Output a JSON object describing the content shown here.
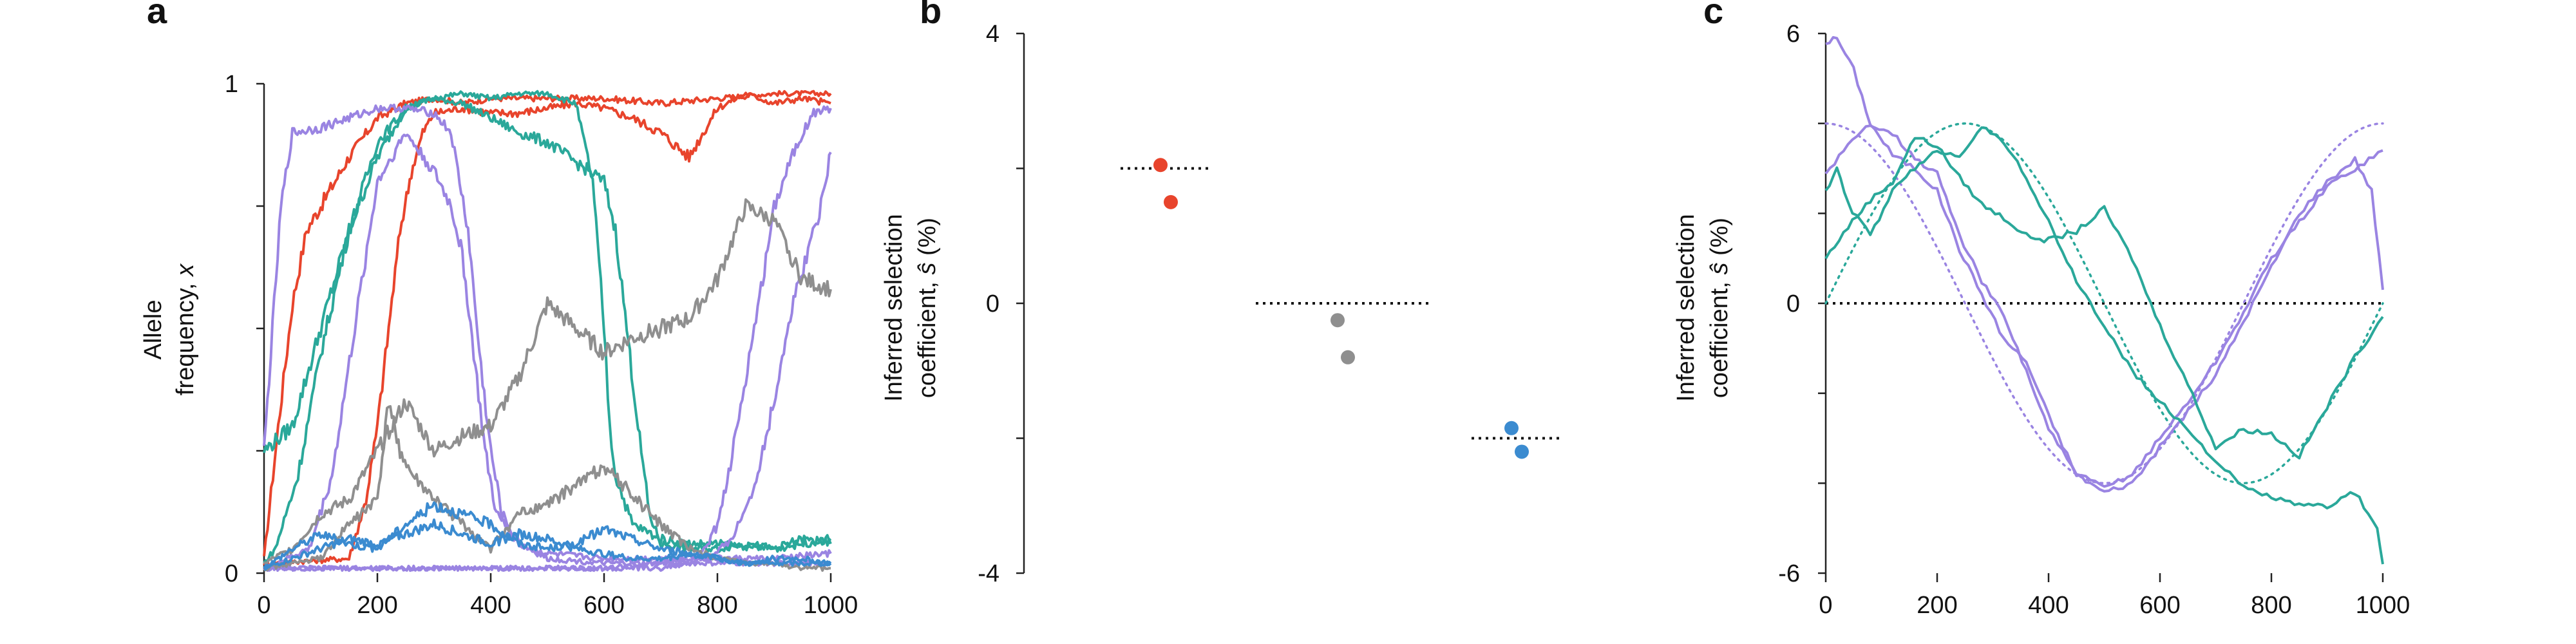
{
  "colors": {
    "red": "#e8442c",
    "teal": "#2aa89a",
    "purple": "#9a84e2",
    "gray": "#8f8f8f",
    "blue": "#3b8bd0",
    "black": "#111111"
  },
  "chart_data": [
    {
      "panel": "a",
      "type": "line",
      "xlabel": "",
      "ylabel_line1": "Allele",
      "ylabel_line2_prefix": "frequency, ",
      "ylabel_line2_var": "x",
      "xlim": [
        0,
        1000
      ],
      "ylim": [
        0,
        1
      ],
      "x_ticks": [
        0,
        200,
        400,
        600,
        800,
        1000
      ],
      "y_ticks": [
        0,
        1
      ],
      "series": [
        {
          "color": "red",
          "x": [
            0,
            25,
            50,
            75,
            100,
            150,
            200,
            250,
            300,
            350,
            400,
            500,
            600,
            700,
            800,
            900,
            1000
          ],
          "y": [
            0.03,
            0.3,
            0.55,
            0.7,
            0.75,
            0.85,
            0.93,
            0.96,
            0.97,
            0.96,
            0.97,
            0.97,
            0.97,
            0.96,
            0.97,
            0.98,
            0.98
          ]
        },
        {
          "color": "red",
          "x": [
            0,
            150,
            180,
            200,
            220,
            240,
            260,
            280,
            300,
            350,
            400,
            450,
            500,
            550,
            600,
            650,
            700,
            750,
            800,
            850,
            900,
            950,
            1000
          ],
          "y": [
            0.02,
            0.03,
            0.15,
            0.3,
            0.5,
            0.7,
            0.82,
            0.9,
            0.94,
            0.95,
            0.94,
            0.94,
            0.95,
            0.96,
            0.95,
            0.93,
            0.9,
            0.85,
            0.95,
            0.98,
            0.96,
            0.97,
            0.96
          ]
        },
        {
          "color": "teal",
          "x": [
            0,
            50,
            100,
            150,
            200,
            250,
            300,
            350,
            400,
            450,
            500,
            600,
            620,
            640,
            660,
            680,
            700,
            750,
            800,
            850,
            900,
            950,
            1000
          ],
          "y": [
            0.25,
            0.3,
            0.5,
            0.7,
            0.85,
            0.95,
            0.97,
            0.96,
            0.93,
            0.9,
            0.88,
            0.8,
            0.7,
            0.5,
            0.3,
            0.12,
            0.06,
            0.05,
            0.05,
            0.06,
            0.05,
            0.07,
            0.06
          ]
        },
        {
          "color": "teal",
          "x": [
            0,
            20,
            60,
            100,
            150,
            200,
            250,
            300,
            350,
            400,
            450,
            500,
            550,
            580,
            600,
            610,
            620,
            650,
            700,
            750,
            800,
            900,
            1000
          ],
          "y": [
            0.02,
            0.05,
            0.2,
            0.45,
            0.7,
            0.88,
            0.95,
            0.97,
            0.98,
            0.97,
            0.98,
            0.98,
            0.96,
            0.8,
            0.5,
            0.3,
            0.2,
            0.1,
            0.07,
            0.06,
            0.06,
            0.05,
            0.07
          ]
        },
        {
          "color": "purple",
          "x": [
            0,
            30,
            50,
            100,
            150,
            200,
            250,
            300,
            330,
            360,
            380,
            400,
            420,
            450,
            500,
            600,
            700,
            800,
            900,
            1000
          ],
          "y": [
            0.25,
            0.75,
            0.9,
            0.91,
            0.93,
            0.95,
            0.95,
            0.94,
            0.9,
            0.7,
            0.45,
            0.25,
            0.12,
            0.06,
            0.04,
            0.03,
            0.03,
            0.03,
            0.03,
            0.04
          ]
        },
        {
          "color": "purple",
          "x": [
            0,
            80,
            120,
            160,
            200,
            250,
            300,
            330,
            350,
            370,
            390,
            410,
            450,
            500,
            600,
            700,
            800,
            900,
            1000
          ],
          "y": [
            0.01,
            0.05,
            0.2,
            0.5,
            0.8,
            0.9,
            0.82,
            0.75,
            0.65,
            0.45,
            0.25,
            0.12,
            0.06,
            0.03,
            0.02,
            0.02,
            0.02,
            0.02,
            0.02
          ]
        },
        {
          "color": "purple",
          "x": [
            0,
            600,
            700,
            750,
            780,
            800,
            820,
            850,
            880,
            900,
            930,
            950,
            970,
            1000
          ],
          "y": [
            0.01,
            0.01,
            0.02,
            0.03,
            0.05,
            0.1,
            0.2,
            0.4,
            0.6,
            0.75,
            0.85,
            0.9,
            0.94,
            0.95
          ]
        },
        {
          "color": "purple",
          "x": [
            0,
            600,
            700,
            750,
            800,
            830,
            860,
            880,
            900,
            920,
            940,
            960,
            980,
            1000
          ],
          "y": [
            0.01,
            0.01,
            0.01,
            0.02,
            0.04,
            0.08,
            0.16,
            0.25,
            0.35,
            0.48,
            0.58,
            0.66,
            0.74,
            0.86
          ]
        },
        {
          "color": "gray",
          "x": [
            0,
            50,
            100,
            150,
            200,
            250,
            300,
            350,
            400,
            450,
            500,
            550,
            600,
            650,
            700,
            750,
            800,
            850,
            900,
            950,
            1000
          ],
          "y": [
            0.02,
            0.05,
            0.12,
            0.15,
            0.25,
            0.35,
            0.25,
            0.28,
            0.3,
            0.4,
            0.55,
            0.5,
            0.45,
            0.48,
            0.5,
            0.52,
            0.6,
            0.75,
            0.72,
            0.6,
            0.58
          ]
        },
        {
          "color": "gray",
          "x": [
            0,
            100,
            150,
            200,
            220,
            240,
            260,
            300,
            350,
            400,
            420,
            450,
            500,
            550,
            600,
            650,
            700,
            750,
            800,
            850,
            900,
            950,
            1000
          ],
          "y": [
            0.01,
            0.03,
            0.1,
            0.15,
            0.35,
            0.25,
            0.2,
            0.15,
            0.1,
            0.05,
            0.08,
            0.12,
            0.14,
            0.18,
            0.22,
            0.16,
            0.1,
            0.05,
            0.03,
            0.02,
            0.02,
            0.01,
            0.01
          ]
        },
        {
          "color": "blue",
          "x": [
            0,
            50,
            100,
            150,
            200,
            250,
            300,
            350,
            400,
            450,
            500,
            550,
            600,
            650,
            700,
            750,
            800,
            850,
            900,
            950,
            1000
          ],
          "y": [
            0.01,
            0.05,
            0.08,
            0.06,
            0.05,
            0.1,
            0.14,
            0.12,
            0.1,
            0.06,
            0.05,
            0.06,
            0.09,
            0.07,
            0.05,
            0.04,
            0.03,
            0.02,
            0.02,
            0.02,
            0.02
          ]
        },
        {
          "color": "blue",
          "x": [
            0,
            50,
            100,
            150,
            200,
            250,
            300,
            350,
            400,
            450,
            500,
            550,
            600,
            650,
            700,
            750,
            800,
            850,
            900,
            950,
            1000
          ],
          "y": [
            0.01,
            0.03,
            0.05,
            0.07,
            0.06,
            0.08,
            0.1,
            0.08,
            0.06,
            0.08,
            0.07,
            0.05,
            0.04,
            0.03,
            0.03,
            0.04,
            0.03,
            0.02,
            0.03,
            0.03,
            0.02
          ]
        }
      ]
    },
    {
      "panel": "b",
      "type": "scatter",
      "ylabel_line1": "Inferred selection",
      "ylabel_line2_prefix": "coefficient, ",
      "ylabel_line2_var": "ŝ",
      "ylabel_line2_suffix": " (%)",
      "ylim": [
        -4,
        4
      ],
      "y_ticks": [
        -4,
        0,
        4
      ],
      "groups": [
        {
          "color": "red",
          "true_value": 2,
          "points": [
            2.05,
            1.5
          ]
        },
        {
          "color": "gray",
          "true_value": 0,
          "points": [
            -0.25,
            -0.8
          ]
        },
        {
          "color": "blue",
          "true_value": -2,
          "points": [
            -1.85,
            -2.2
          ]
        }
      ]
    },
    {
      "panel": "c",
      "type": "line",
      "ylabel_line1": "Inferred selection",
      "ylabel_line2_prefix": "coefficient, ",
      "ylabel_line2_var": "ŝ",
      "ylabel_line2_suffix": " (%)",
      "xlim": [
        0,
        1000
      ],
      "ylim": [
        -6,
        6
      ],
      "x_ticks": [
        0,
        200,
        400,
        600,
        800,
        1000
      ],
      "y_ticks": [
        -6,
        0,
        6
      ],
      "true_curves": [
        {
          "color": "purple",
          "amplitude": 4,
          "phase": 0
        },
        {
          "color": "teal",
          "amplitude": 4,
          "phase": -1.5708
        }
      ],
      "series": [
        {
          "color": "purple",
          "x": [
            0,
            20,
            50,
            80,
            120,
            160,
            200,
            240,
            280,
            320,
            360,
            400,
            450,
            500,
            550,
            600,
            650,
            700,
            750,
            800,
            850,
            900,
            950,
            980,
            1000
          ],
          "y": [
            5.8,
            5.9,
            5.2,
            4.0,
            3.3,
            3.0,
            2.5,
            1.2,
            0.2,
            -0.8,
            -1.3,
            -2.5,
            -3.8,
            -4.2,
            -4.0,
            -3.2,
            -2.4,
            -1.6,
            -0.4,
            0.8,
            2.0,
            2.7,
            3.2,
            2.5,
            0.3
          ]
        },
        {
          "color": "purple",
          "x": [
            0,
            40,
            80,
            120,
            160,
            200,
            240,
            280,
            320,
            360,
            400,
            450,
            500,
            550,
            600,
            650,
            700,
            750,
            800,
            850,
            900,
            950,
            1000
          ],
          "y": [
            2.9,
            3.5,
            4.0,
            3.8,
            3.2,
            2.9,
            1.5,
            0.5,
            -0.3,
            -1.5,
            -2.8,
            -3.8,
            -4.1,
            -3.8,
            -3.0,
            -2.2,
            -1.3,
            -0.2,
            1.0,
            1.8,
            2.6,
            3.0,
            3.4
          ]
        },
        {
          "color": "teal",
          "x": [
            0,
            40,
            80,
            120,
            160,
            200,
            240,
            280,
            320,
            360,
            400,
            450,
            500,
            550,
            600,
            650,
            700,
            750,
            800,
            850,
            900,
            950,
            1000
          ],
          "y": [
            1.0,
            1.7,
            2.3,
            2.7,
            3.7,
            3.5,
            2.8,
            2.2,
            1.9,
            1.5,
            1.4,
            1.6,
            2.1,
            1.0,
            -0.5,
            -1.8,
            -3.2,
            -2.8,
            -2.9,
            -3.4,
            -2.3,
            -1.2,
            -0.3
          ]
        },
        {
          "color": "teal",
          "x": [
            0,
            20,
            40,
            80,
            120,
            160,
            200,
            240,
            280,
            320,
            360,
            400,
            450,
            500,
            550,
            600,
            650,
            700,
            750,
            800,
            850,
            900,
            950,
            990,
            1000
          ],
          "y": [
            2.5,
            3.0,
            2.2,
            1.5,
            2.5,
            3.0,
            3.4,
            3.3,
            3.9,
            3.6,
            2.8,
            1.8,
            0.5,
            -0.5,
            -1.5,
            -2.2,
            -2.8,
            -3.5,
            -4.1,
            -4.3,
            -4.5,
            -4.5,
            -4.2,
            -5.0,
            -5.8
          ]
        }
      ]
    }
  ]
}
